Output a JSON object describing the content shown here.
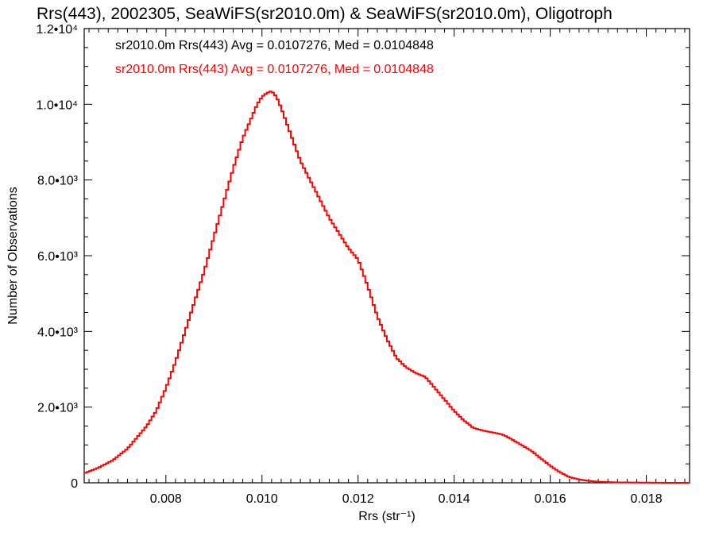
{
  "chart_data": {
    "type": "line",
    "title": "Rrs(443), 2002305, SeaWiFS(sr2010.0m) & SeaWiFS(sr2010.0m), Oligotroph",
    "xlabel": "Rrs (str⁻¹)",
    "ylabel": "Number of Observations",
    "xlim": [
      0.0063,
      0.0189
    ],
    "ylim": [
      0,
      12000
    ],
    "x_ticks": [
      {
        "value": 0.008,
        "label": "0.008"
      },
      {
        "value": 0.01,
        "label": "0.010"
      },
      {
        "value": 0.012,
        "label": "0.012"
      },
      {
        "value": 0.014,
        "label": "0.014"
      },
      {
        "value": 0.016,
        "label": "0.016"
      },
      {
        "value": 0.018,
        "label": "0.018"
      }
    ],
    "y_ticks": [
      {
        "value": 0,
        "label": "0"
      },
      {
        "value": 2000,
        "label": "2.0•10³"
      },
      {
        "value": 4000,
        "label": "4.0•10³"
      },
      {
        "value": 6000,
        "label": "6.0•10³"
      },
      {
        "value": 8000,
        "label": "8.0•10³"
      },
      {
        "value": 10000,
        "label": "1.0•10⁴"
      },
      {
        "value": 12000,
        "label": "1.2•10⁴"
      }
    ],
    "legend": [
      {
        "text": "sr2010.0m Rrs(443) Avg = 0.0107276, Med = 0.0104848",
        "color": "#000000"
      },
      {
        "text": "sr2010.0m Rrs(443) Avg = 0.0107276, Med = 0.0104848",
        "color": "#ff0000"
      }
    ],
    "legend_position": "top-left",
    "grid": false,
    "step": true,
    "series": [
      {
        "color": "#ff0000",
        "x": [
          0.0063,
          0.0066,
          0.0069,
          0.0072,
          0.0074,
          0.0076,
          0.0078,
          0.008,
          0.0082,
          0.0084,
          0.0086,
          0.0088,
          0.009,
          0.0092,
          0.0094,
          0.0096,
          0.0098,
          0.0099,
          0.01,
          0.0101,
          0.0102,
          0.0103,
          0.0104,
          0.0106,
          0.0108,
          0.011,
          0.0112,
          0.0114,
          0.0116,
          0.0118,
          0.012,
          0.0122,
          0.0124,
          0.0126,
          0.0128,
          0.013,
          0.0132,
          0.0134,
          0.0136,
          0.0138,
          0.014,
          0.0142,
          0.0144,
          0.0146,
          0.0148,
          0.015,
          0.0152,
          0.0154,
          0.0156,
          0.0158,
          0.016,
          0.0162,
          0.0164,
          0.0166,
          0.0168,
          0.017,
          0.0172,
          0.0174,
          0.0176,
          0.018,
          0.0185,
          0.0189
        ],
        "values": [
          250,
          400,
          600,
          900,
          1200,
          1500,
          1900,
          2500,
          3200,
          4000,
          4800,
          5600,
          6500,
          7400,
          8300,
          9100,
          9700,
          10000,
          10200,
          10300,
          10350,
          10200,
          9900,
          9200,
          8500,
          8000,
          7500,
          7000,
          6600,
          6200,
          5900,
          5200,
          4400,
          3800,
          3300,
          3050,
          2900,
          2800,
          2500,
          2200,
          1900,
          1650,
          1450,
          1380,
          1330,
          1280,
          1150,
          1000,
          850,
          650,
          450,
          280,
          150,
          90,
          50,
          30,
          20,
          10,
          10,
          5,
          0,
          0
        ]
      }
    ]
  }
}
